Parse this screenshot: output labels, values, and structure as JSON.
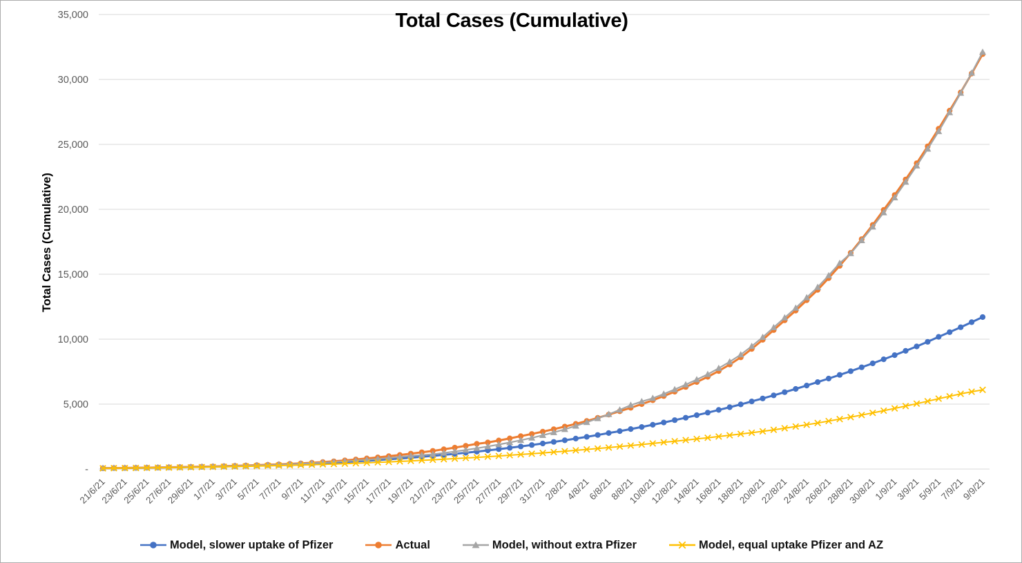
{
  "chart_data": {
    "type": "line",
    "title": "Total Cases (Cumulative)",
    "ylabel": "Total Cases (Cumulative)",
    "xlabel": "",
    "ylim": [
      0,
      35000
    ],
    "y_tick_interval": 5000,
    "y_tick_labels": [
      "-",
      "5,000",
      "10,000",
      "15,000",
      "20,000",
      "25,000",
      "30,000",
      "35,000"
    ],
    "grid": "horizontal",
    "legend_position": "bottom",
    "x_note": "daily data points from 21/6/21 to 9/9/21; axis labels every 2 days",
    "x_tick_labels": [
      "21/6/21",
      "23/6/21",
      "25/6/21",
      "27/6/21",
      "29/6/21",
      "1/7/21",
      "3/7/21",
      "5/7/21",
      "7/7/21",
      "9/7/21",
      "11/7/21",
      "13/7/21",
      "15/7/21",
      "17/7/21",
      "19/7/21",
      "21/7/21",
      "23/7/21",
      "25/7/21",
      "27/7/21",
      "29/7/21",
      "31/7/21",
      "2/8/21",
      "4/8/21",
      "6/8/21",
      "8/8/21",
      "10/8/21",
      "12/8/21",
      "14/8/21",
      "16/8/21",
      "18/8/21",
      "20/8/21",
      "22/8/21",
      "24/8/21",
      "26/8/21",
      "28/8/21",
      "30/8/21",
      "1/9/21",
      "3/9/21",
      "5/9/21",
      "7/9/21",
      "9/9/21"
    ],
    "series": [
      {
        "name": "Model, slower uptake of Pfizer",
        "color": "#4472C4",
        "marker": "circle",
        "values": [
          65,
          73,
          82,
          92,
          102,
          113,
          125,
          138,
          152,
          168,
          185,
          204,
          224,
          246,
          270,
          296,
          324,
          354,
          387,
          422,
          460,
          500,
          543,
          590,
          640,
          693,
          750,
          810,
          874,
          942,
          1014,
          1090,
          1170,
          1254,
          1342,
          1435,
          1532,
          1634,
          1740,
          1851,
          1967,
          2088,
          2214,
          2345,
          2481,
          2622,
          2769,
          2921,
          3079,
          3242,
          3411,
          3586,
          3767,
          3954,
          4147,
          4346,
          4551,
          4763,
          4981,
          5206,
          5437,
          5675,
          5920,
          6172,
          6431,
          6697,
          6970,
          7251,
          7539,
          7835,
          8139,
          8450,
          8770,
          9100,
          9440,
          9800,
          10180,
          10540,
          10920,
          11310,
          11700
        ]
      },
      {
        "name": "Actual",
        "color": "#ED7D31",
        "marker": "circle",
        "values": [
          65,
          75,
          85,
          95,
          105,
          118,
          132,
          148,
          166,
          182,
          200,
          222,
          246,
          272,
          300,
          330,
          362,
          398,
          438,
          484,
          536,
          598,
          666,
          740,
          818,
          900,
          990,
          1085,
          1185,
          1290,
          1400,
          1520,
          1650,
          1790,
          1940,
          2050,
          2200,
          2360,
          2530,
          2700,
          2880,
          3070,
          3270,
          3480,
          3700,
          3940,
          4190,
          4450,
          4720,
          5000,
          5300,
          5620,
          5960,
          6320,
          6700,
          7100,
          7550,
          8050,
          8600,
          9250,
          9950,
          10700,
          11450,
          12200,
          13000,
          13800,
          14700,
          15650,
          16650,
          17700,
          18800,
          19950,
          21100,
          22300,
          23550,
          24850,
          26200,
          27600,
          29000,
          30450,
          31950
        ]
      },
      {
        "name": "Model, without extra Pfizer",
        "color": "#A5A5A5",
        "marker": "triangle",
        "values": [
          65,
          73,
          82,
          92,
          102,
          113,
          125,
          139,
          154,
          171,
          190,
          210,
          232,
          256,
          282,
          310,
          340,
          373,
          410,
          450,
          495,
          543,
          595,
          652,
          713,
          780,
          852,
          930,
          1015,
          1075,
          1140,
          1240,
          1350,
          1470,
          1600,
          1740,
          1890,
          2050,
          2220,
          2400,
          2600,
          2820,
          3060,
          3320,
          3600,
          3900,
          4220,
          4560,
          4920,
          5200,
          5450,
          5780,
          6130,
          6500,
          6890,
          7300,
          7760,
          8260,
          8810,
          9460,
          10150,
          10900,
          11650,
          12400,
          13200,
          14000,
          14900,
          15850,
          16600,
          17600,
          18650,
          19750,
          20900,
          22100,
          23350,
          24650,
          26000,
          27450,
          28950,
          30500,
          32100
        ]
      },
      {
        "name": "Model, equal uptake Pfizer and AZ",
        "color": "#FFC000",
        "marker": "x",
        "values": [
          60,
          67,
          75,
          83,
          92,
          101,
          111,
          122,
          134,
          147,
          160,
          175,
          190,
          207,
          225,
          244,
          264,
          286,
          309,
          334,
          360,
          388,
          417,
          448,
          480,
          514,
          550,
          588,
          627,
          668,
          711,
          756,
          802,
          850,
          900,
          952,
          1006,
          1062,
          1120,
          1180,
          1242,
          1306,
          1372,
          1440,
          1510,
          1582,
          1656,
          1732,
          1810,
          1890,
          1972,
          2056,
          2142,
          2230,
          2320,
          2412,
          2506,
          2602,
          2700,
          2800,
          2902,
          3020,
          3145,
          3275,
          3410,
          3550,
          3695,
          3845,
          4000,
          4160,
          4325,
          4495,
          4670,
          4850,
          5035,
          5225,
          5420,
          5600,
          5790,
          5950,
          6100
        ]
      }
    ],
    "grid_color": "#D9D9D9",
    "axis_label_color": "#595959"
  }
}
